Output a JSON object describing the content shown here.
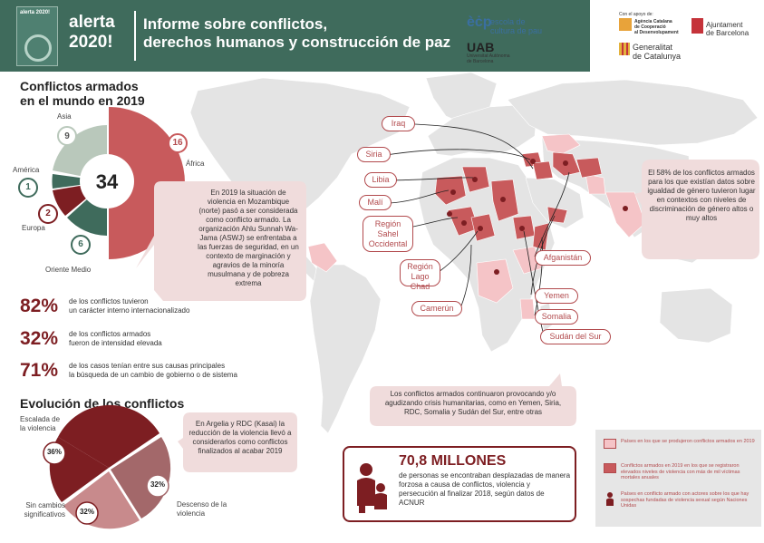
{
  "header": {
    "cover_text": "alerta\n2020!",
    "brand_line1": "alerta",
    "brand_line2": "2020!",
    "title_line1": "Informe sobre conflictos,",
    "title_line2": "derechos humanos y construcción de paz"
  },
  "logos": {
    "ecp_mark": "èċp",
    "ecp_line1": "escola de",
    "ecp_line2": "cultura de pau",
    "uab_mark": "UAB",
    "uab_line1": "Universitat Autònoma",
    "uab_line2": "de Barcelona",
    "apoyo": "Con el apoyo de:",
    "acc_line1": "Agència Catalana",
    "acc_line2": "de Cooperació",
    "acc_line3": "al Desenvolupament",
    "gen_line1": "Generalitat",
    "gen_line2": "de Catalunya",
    "ajt_line1": "Ajuntament",
    "ajt_line2": "de Barcelona"
  },
  "conflicts": {
    "title_line1": "Conflictos armados",
    "title_line2": "en el mundo en 2019",
    "total": "34",
    "regions": [
      {
        "name": "Asia",
        "value": "9"
      },
      {
        "name": "África",
        "value": "16"
      },
      {
        "name": "América",
        "value": "1"
      },
      {
        "name": "Europa",
        "value": "2"
      },
      {
        "name": "Oriente Medio",
        "value": "6"
      }
    ],
    "mozambique_note": "En 2019 la situación de violencia en Mozambique (norte) pasó a ser considerada como conflicto armado. La organización Ahlu Sunnah Wa-Jama (ASWJ) se enfrentaba a las fuerzas de seguridad, en un contexto de marginación y agravios de la minoría musulmana y de pobreza extrema"
  },
  "colors": {
    "green_dark": "#3f6b5c",
    "red_main": "#c85a5c",
    "red_dark": "#7d1e22",
    "sage": "#b9c8bb"
  },
  "stats": [
    {
      "num": "82%",
      "line1": "de los conflictos tuvieron",
      "line2": "un carácter interno internacionalizado"
    },
    {
      "num": "32%",
      "line1": "de los conflictos armados",
      "line2": "fueron de intensidad elevada"
    },
    {
      "num": "71%",
      "line1": "de los casos tenían entre sus causas principales",
      "line2": "la búsqueda de un cambio de gobierno o de sistema"
    }
  ],
  "evolution": {
    "title": "Evolución de los conflictos",
    "escalada_label": "Escalada de la violencia",
    "escalada_pct": "36%",
    "descenso_label": "Descenso de la violencia",
    "descenso_pct": "32%",
    "sin_label": "Sin cambios significativos",
    "sin_pct": "32%",
    "note": "En Argelia y RDC (Kasai) la reducción de la violencia llevó a considerarlos como conflictos finalizados al acabar 2019"
  },
  "map_labels": [
    "Iraq",
    "Siria",
    "Libia",
    "Malí",
    "Región Sahel Occidental",
    "Región Lago Chad",
    "Camerún",
    "Afganistán",
    "Yemen",
    "Somalia",
    "Sudán del Sur"
  ],
  "gender_note": "El 58% de los conflictos armados para los que existían datos sobre igualdad de género tuvieron lugar en contextos con niveles de discriminación de género altos o muy altos",
  "humanitarian_note": "Los conflictos armados continuaron provocando y/o agudizando crisis humanitarias, como en Yemen, Siria, RDC, Somalia y Sudán del Sur, entre otras",
  "millions": {
    "headline": "70,8 MILLONES",
    "text": "de personas se encontraban desplazadas de manera forzosa a causa de conflictos, violencia y persecución al finalizar 2018, según datos de ACNUR"
  },
  "legend": {
    "item1": "Países en los que se produjeron conflictos armados en 2019",
    "item2": "Conflictos armados en 2019 en los que se registraron elevados niveles de violencia con más de mil víctimas mortales anuales",
    "item3": "Países en conflicto armado con actores sobre los que hay sospechas fundadas de violencia sexual según Naciones Unidas"
  }
}
